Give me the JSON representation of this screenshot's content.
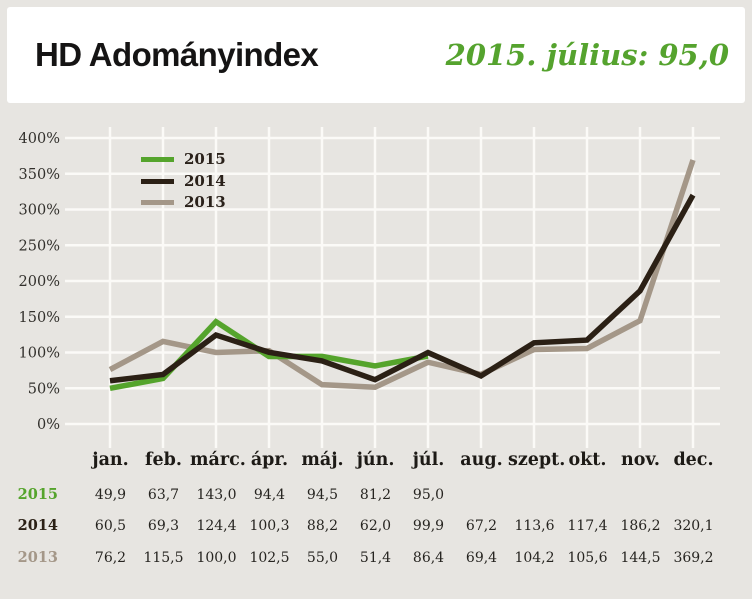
{
  "header": {
    "title": "HD Adományindex",
    "current_value_label": "2015. július: 95,0"
  },
  "colors": {
    "page_background": "#e7e5e1",
    "card_background": "#ffffff",
    "grid_line": "#fbfaf7",
    "title_text": "#151414",
    "headline_green": "#55a32e",
    "table_text": "#262420",
    "legend_text": "#2a211a",
    "series_2015": "#55a42c",
    "series_2014": "#2b2015",
    "series_2013": "#a49788"
  },
  "chart_data": {
    "type": "line",
    "title": "HD Adományindex",
    "xlabel": "",
    "ylabel": "",
    "categories": [
      "jan.",
      "feb.",
      "márc.",
      "ápr.",
      "máj.",
      "jún.",
      "júl.",
      "aug.",
      "szept.",
      "okt.",
      "nov.",
      "dec."
    ],
    "series": [
      {
        "name": "2015",
        "color": "#55a42c",
        "z": 2,
        "values": [
          49.9,
          63.7,
          143.0,
          94.4,
          94.5,
          81.2,
          95.0
        ]
      },
      {
        "name": "2014",
        "color": "#2b2015",
        "z": 3,
        "values": [
          60.5,
          69.3,
          124.4,
          100.3,
          88.2,
          62.0,
          99.9,
          67.2,
          113.6,
          117.4,
          186.2,
          320.1
        ]
      },
      {
        "name": "2013",
        "color": "#a49788",
        "z": 1,
        "values": [
          76.2,
          115.5,
          100.0,
          102.5,
          55.0,
          51.4,
          86.4,
          69.4,
          104.2,
          105.6,
          144.5,
          369.2
        ]
      }
    ],
    "ylim": [
      0,
      400
    ],
    "ytick_labels": [
      "0%",
      "50%",
      "100%",
      "150%",
      "200%",
      "250%",
      "300%",
      "350%",
      "400%"
    ],
    "grid": true,
    "legend_position": "top-left-inside"
  },
  "table": {
    "months": [
      "jan.",
      "feb.",
      "márc.",
      "ápr.",
      "máj.",
      "jún.",
      "júl.",
      "aug.",
      "szept.",
      "okt.",
      "nov.",
      "dec."
    ],
    "rows": [
      {
        "year": "2015",
        "color": "#55a42c",
        "values": [
          "49,9",
          "63,7",
          "143,0",
          "94,4",
          "94,5",
          "81,2",
          "95,0",
          "",
          "",
          "",
          "",
          ""
        ]
      },
      {
        "year": "2014",
        "color": "#2b2015",
        "values": [
          "60,5",
          "69,3",
          "124,4",
          "100,3",
          "88,2",
          "62,0",
          "99,9",
          "67,2",
          "113,6",
          "117,4",
          "186,2",
          "320,1"
        ]
      },
      {
        "year": "2013",
        "color": "#a49788",
        "values": [
          "76,2",
          "115,5",
          "100,0",
          "102,5",
          "55,0",
          "51,4",
          "86,4",
          "69,4",
          "104,2",
          "105,6",
          "144,5",
          "369,2"
        ]
      }
    ]
  }
}
